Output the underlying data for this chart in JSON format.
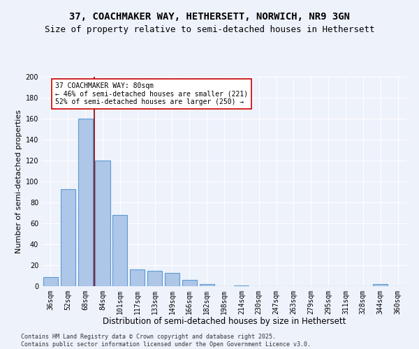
{
  "title1": "37, COACHMAKER WAY, HETHERSETT, NORWICH, NR9 3GN",
  "title2": "Size of property relative to semi-detached houses in Hethersett",
  "bar_labels": [
    "36sqm",
    "52sqm",
    "68sqm",
    "84sqm",
    "101sqm",
    "117sqm",
    "133sqm",
    "149sqm",
    "166sqm",
    "182sqm",
    "198sqm",
    "214sqm",
    "230sqm",
    "247sqm",
    "263sqm",
    "279sqm",
    "295sqm",
    "311sqm",
    "328sqm",
    "344sqm",
    "360sqm"
  ],
  "bar_values": [
    9,
    93,
    160,
    120,
    68,
    16,
    15,
    13,
    6,
    2,
    0,
    1,
    0,
    0,
    0,
    0,
    0,
    0,
    0,
    2,
    0
  ],
  "bar_color": "#aec6e8",
  "bar_edgecolor": "#5b9bd5",
  "vline_x": 2.5,
  "vline_color": "#800000",
  "annotation_text": "37 COACHMAKER WAY: 80sqm\n← 46% of semi-detached houses are smaller (221)\n52% of semi-detached houses are larger (250) →",
  "annotation_box_color": "#ffffff",
  "annotation_box_edgecolor": "#cc0000",
  "xlabel": "Distribution of semi-detached houses by size in Hethersett",
  "ylabel": "Number of semi-detached properties",
  "ylim": [
    0,
    200
  ],
  "yticks": [
    0,
    20,
    40,
    60,
    80,
    100,
    120,
    140,
    160,
    180,
    200
  ],
  "footnote": "Contains HM Land Registry data © Crown copyright and database right 2025.\nContains public sector information licensed under the Open Government Licence v3.0.",
  "background_color": "#eef2fb",
  "grid_color": "#ffffff",
  "title1_fontsize": 10,
  "title2_fontsize": 9,
  "xlabel_fontsize": 8.5,
  "ylabel_fontsize": 8,
  "tick_fontsize": 7,
  "annotation_fontsize": 7,
  "footnote_fontsize": 6
}
